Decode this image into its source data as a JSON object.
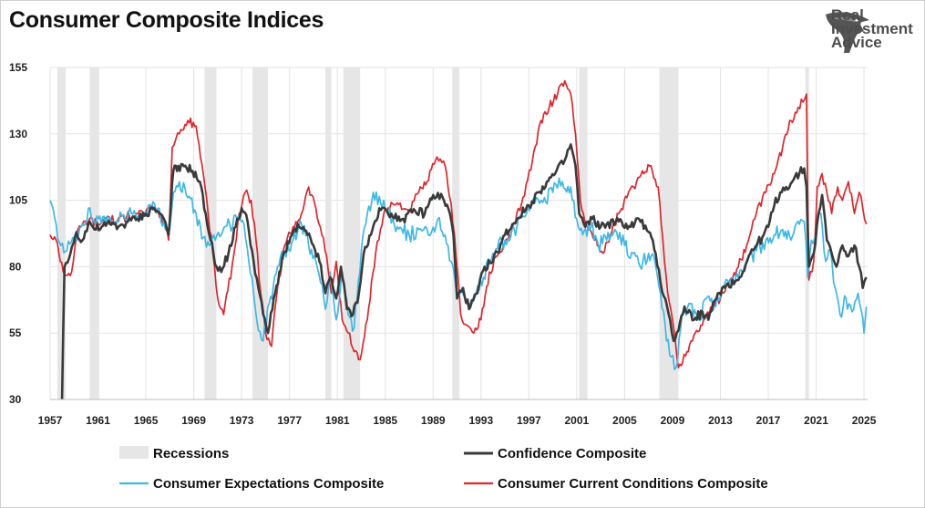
{
  "header": {
    "title": "Consumer Composite Indices"
  },
  "logo": {
    "line1": "Real",
    "line2": "Investment",
    "line3": "Advice",
    "icon": "eagle-head-logo"
  },
  "colors": {
    "confidence": "#3a3a3a",
    "expectations": "#3db8e6",
    "current": "#e0252b",
    "recession": "#e6e6e6",
    "grid": "#e3e3e3"
  },
  "chart_data": {
    "type": "line",
    "title": "Consumer Composite Indices",
    "xlabel": "",
    "ylabel": "",
    "xlim": [
      1957,
      2025.3
    ],
    "ylim": [
      30,
      155
    ],
    "grid": true,
    "legend_position": "bottom",
    "y_ticks": [
      "155",
      "130",
      "105",
      "80",
      "55",
      "30"
    ],
    "y_tick_values": [
      155,
      130,
      105,
      80,
      55,
      30
    ],
    "x_ticks": [
      "1957",
      "1961",
      "1965",
      "1969",
      "1973",
      "1977",
      "1981",
      "1985",
      "1989",
      "1993",
      "1997",
      "2001",
      "2005",
      "2009",
      "2013",
      "2017",
      "2021",
      "2025"
    ],
    "x_tick_values": [
      1957,
      1961,
      1965,
      1969,
      1973,
      1977,
      1981,
      1985,
      1989,
      1993,
      1997,
      2001,
      2005,
      2009,
      2013,
      2017,
      2021,
      2025
    ],
    "recessions": [
      [
        1957.6,
        1958.3
      ],
      [
        1960.3,
        1961.1
      ],
      [
        1969.9,
        1970.9
      ],
      [
        1973.9,
        1975.2
      ],
      [
        1980.0,
        1980.5
      ],
      [
        1981.5,
        1982.9
      ],
      [
        1990.6,
        1991.2
      ],
      [
        2001.2,
        2001.9
      ],
      [
        2007.9,
        2009.5
      ],
      [
        2020.1,
        2020.4
      ]
    ],
    "legend": [
      {
        "key": "recessions",
        "label": "Recessions"
      },
      {
        "key": "confidence",
        "label": "Confidence Composite"
      },
      {
        "key": "expectations",
        "label": "Consumer Expectations Composite"
      },
      {
        "key": "current",
        "label": "Consumer Current Conditions Composite"
      }
    ],
    "series": [
      {
        "name": "Confidence Composite",
        "key": "confidence",
        "x": [
          1958.0,
          1958.2,
          1958.7,
          1959.2,
          1959.7,
          1960.3,
          1960.7,
          1961.3,
          1962.0,
          1962.7,
          1963.5,
          1964.3,
          1965.0,
          1965.7,
          1966.2,
          1966.5,
          1966.9,
          1967.2,
          1967.4,
          1967.6,
          1968.3,
          1968.9,
          1969.5,
          1970.0,
          1970.4,
          1970.9,
          1971.3,
          1971.9,
          1972.5,
          1973.0,
          1973.5,
          1974.0,
          1974.4,
          1974.8,
          1975.2,
          1975.8,
          1976.5,
          1977.2,
          1977.8,
          1978.5,
          1979.0,
          1979.5,
          1980.0,
          1980.4,
          1980.9,
          1981.3,
          1981.8,
          1982.3,
          1982.8,
          1983.2,
          1983.8,
          1984.5,
          1985.5,
          1986.5,
          1987.5,
          1988.3,
          1989.0,
          1989.8,
          1990.4,
          1990.7,
          1991.0,
          1991.5,
          1992.0,
          1992.7,
          1993.3,
          1994.0,
          1995.0,
          1996.0,
          1997.0,
          1997.8,
          1998.5,
          1999.2,
          2000.0,
          2000.5,
          2000.9,
          2001.2,
          2001.7,
          2002.3,
          2003.0,
          2003.5,
          2004.5,
          2005.5,
          2006.2,
          2007.0,
          2007.6,
          2008.0,
          2008.4,
          2008.8,
          2009.1,
          2009.5,
          2010.0,
          2010.8,
          2011.5,
          2012.0,
          2012.8,
          2013.5,
          2014.5,
          2015.5,
          2016.5,
          2017.0,
          2017.5,
          2018.0,
          2018.5,
          2019.0,
          2019.6,
          2020.0,
          2020.2,
          2020.4,
          2020.8,
          2021.2,
          2021.5,
          2021.9,
          2022.3,
          2022.7,
          2023.2,
          2023.7,
          2024.2,
          2024.6,
          2024.9,
          2025.2
        ],
        "y": [
          30,
          80,
          85,
          93,
          90,
          97,
          94,
          95,
          96,
          95,
          97,
          98,
          100,
          102,
          100,
          98,
          92,
          112,
          118,
          116,
          118,
          116,
          112,
          100,
          90,
          80,
          78,
          85,
          95,
          102,
          97,
          82,
          72,
          62,
          55,
          70,
          85,
          92,
          95,
          92,
          88,
          82,
          70,
          76,
          68,
          80,
          64,
          62,
          70,
          85,
          92,
          102,
          100,
          98,
          101,
          100,
          107,
          106,
          100,
          92,
          68,
          72,
          64,
          70,
          80,
          82,
          92,
          98,
          103,
          108,
          112,
          115,
          120,
          126,
          118,
          100,
          95,
          98,
          95,
          96,
          97,
          95,
          98,
          93,
          85,
          74,
          68,
          60,
          52,
          56,
          65,
          60,
          63,
          60,
          70,
          73,
          75,
          85,
          91,
          95,
          103,
          108,
          110,
          112,
          115,
          117,
          110,
          80,
          85,
          100,
          107,
          90,
          85,
          80,
          88,
          84,
          88,
          80,
          72,
          76
        ]
      },
      {
        "name": "Consumer Expectations Composite",
        "key": "expectations",
        "x": [
          1957.0,
          1957.5,
          1957.9,
          1958.4,
          1959.0,
          1959.6,
          1960.2,
          1960.8,
          1961.5,
          1962.2,
          1963.0,
          1963.8,
          1964.5,
          1965.2,
          1966.0,
          1966.5,
          1967.0,
          1967.3,
          1967.8,
          1968.5,
          1969.2,
          1969.8,
          1970.3,
          1970.8,
          1971.3,
          1972.0,
          1972.6,
          1973.2,
          1973.6,
          1974.0,
          1974.4,
          1974.8,
          1975.3,
          1976.0,
          1976.6,
          1977.3,
          1978.0,
          1978.6,
          1979.2,
          1979.6,
          1980.0,
          1980.4,
          1980.9,
          1981.4,
          1981.9,
          1982.4,
          1983.0,
          1983.5,
          1984.0,
          1985.0,
          1986.0,
          1987.0,
          1987.8,
          1988.6,
          1989.4,
          1990.0,
          1990.5,
          1990.9,
          1991.4,
          1992.0,
          1992.6,
          1993.2,
          1994.0,
          1995.0,
          1996.0,
          1996.8,
          1997.5,
          1998.3,
          1999.0,
          1999.8,
          2000.5,
          2001.0,
          2001.5,
          2002.2,
          2002.8,
          2003.5,
          2004.2,
          2005.0,
          2005.7,
          2006.3,
          2007.0,
          2007.6,
          2008.0,
          2008.5,
          2008.9,
          2009.3,
          2009.8,
          2010.5,
          2011.2,
          2011.8,
          2012.5,
          2013.2,
          2014.0,
          2015.0,
          2016.0,
          2016.8,
          2017.5,
          2018.2,
          2018.9,
          2019.6,
          2020.0,
          2020.3,
          2020.6,
          2021.0,
          2021.4,
          2021.8,
          2022.2,
          2022.6,
          2023.0,
          2023.5,
          2024.0,
          2024.5,
          2024.8,
          2025.0,
          2025.2
        ],
        "y": [
          105,
          96,
          88,
          86,
          91,
          95,
          102,
          96,
          99,
          97,
          99,
          100,
          99,
          103,
          102,
          97,
          94,
          108,
          112,
          106,
          100,
          91,
          88,
          90,
          92,
          96,
          98,
          96,
          82,
          70,
          56,
          52,
          66,
          80,
          86,
          90,
          96,
          88,
          82,
          74,
          64,
          78,
          60,
          78,
          62,
          57,
          86,
          100,
          108,
          102,
          95,
          92,
          94,
          92,
          98,
          92,
          82,
          72,
          72,
          66,
          70,
          76,
          85,
          90,
          95,
          100,
          104,
          106,
          108,
          112,
          110,
          98,
          92,
          95,
          88,
          90,
          94,
          88,
          85,
          80,
          85,
          80,
          70,
          52,
          46,
          42,
          62,
          66,
          60,
          68,
          65,
          72,
          76,
          80,
          86,
          90,
          92,
          94,
          90,
          96,
          97,
          76,
          90,
          92,
          100,
          82,
          86,
          72,
          62,
          68,
          63,
          70,
          63,
          55,
          65
        ]
      },
      {
        "name": "Consumer Current Conditions Composite",
        "key": "current",
        "x": [
          1957.0,
          1957.5,
          1958.2,
          1958.8,
          1959.2,
          1959.7,
          1960.3,
          1961.0,
          1961.8,
          1962.6,
          1963.4,
          1964.2,
          1965.0,
          1965.8,
          1966.5,
          1966.9,
          1967.2,
          1967.5,
          1967.8,
          1968.5,
          1969.2,
          1969.8,
          1970.2,
          1970.6,
          1971.0,
          1971.5,
          1972.2,
          1972.8,
          1973.3,
          1973.8,
          1974.2,
          1974.6,
          1975.0,
          1975.5,
          1976.0,
          1976.6,
          1977.3,
          1978.0,
          1978.6,
          1979.2,
          1979.7,
          1980.1,
          1980.5,
          1980.9,
          1981.4,
          1981.9,
          1982.4,
          1982.9,
          1983.5,
          1984.2,
          1985.0,
          1986.0,
          1987.0,
          1987.8,
          1988.5,
          1989.2,
          1990.0,
          1990.5,
          1990.9,
          1991.3,
          1991.8,
          1992.4,
          1993.0,
          1993.7,
          1994.5,
          1995.5,
          1996.5,
          1997.3,
          1998.0,
          1998.7,
          1999.4,
          2000.0,
          2000.5,
          2000.9,
          2001.3,
          2001.9,
          2002.5,
          2003.2,
          2003.8,
          2004.5,
          2005.2,
          2006.0,
          2006.6,
          2007.2,
          2007.8,
          2008.2,
          2008.6,
          2009.0,
          2009.5,
          2010.2,
          2010.9,
          2011.6,
          2012.3,
          2013.0,
          2013.8,
          2014.5,
          2015.2,
          2016.0,
          2016.8,
          2017.5,
          2018.2,
          2018.9,
          2019.5,
          2019.9,
          2020.2,
          2020.4,
          2020.8,
          2021.1,
          2021.5,
          2021.9,
          2022.3,
          2022.8,
          2023.2,
          2023.7,
          2024.2,
          2024.6,
          2024.9,
          2025.2
        ],
        "y": [
          92,
          90,
          77,
          78,
          92,
          96,
          98,
          96,
          99,
          97,
          99,
          100,
          101,
          102,
          97,
          90,
          125,
          128,
          130,
          135,
          133,
          115,
          100,
          85,
          68,
          62,
          80,
          100,
          108,
          105,
          90,
          70,
          55,
          50,
          72,
          88,
          95,
          100,
          110,
          102,
          92,
          84,
          70,
          82,
          60,
          55,
          48,
          45,
          60,
          85,
          102,
          104,
          101,
          108,
          112,
          120,
          118,
          104,
          85,
          62,
          58,
          55,
          60,
          78,
          85,
          92,
          106,
          120,
          135,
          140,
          145,
          150,
          145,
          130,
          105,
          95,
          90,
          85,
          92,
          100,
          106,
          112,
          115,
          118,
          110,
          90,
          70,
          60,
          42,
          48,
          55,
          60,
          65,
          68,
          75,
          80,
          88,
          100,
          108,
          115,
          125,
          135,
          140,
          142,
          145,
          75,
          82,
          110,
          115,
          108,
          100,
          110,
          105,
          112,
          100,
          108,
          102,
          96
        ]
      }
    ]
  }
}
